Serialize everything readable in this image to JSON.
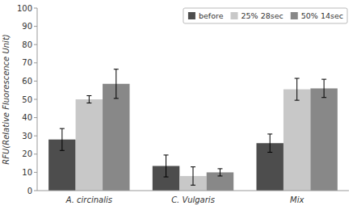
{
  "chart_data": {
    "type": "bar",
    "categories": [
      "A. circinalis",
      "C. Vulgaris",
      "Mix"
    ],
    "series": [
      {
        "name": "before",
        "color": "#4d4d4d",
        "values": [
          28,
          13.5,
          26
        ],
        "errors": [
          6,
          6,
          5
        ]
      },
      {
        "name": "25% 28sec",
        "color": "#c8c8c8",
        "values": [
          50,
          8,
          55.5
        ],
        "errors": [
          2,
          5,
          6
        ]
      },
      {
        "name": "50% 14sec",
        "color": "#888888",
        "values": [
          58.5,
          10,
          56
        ],
        "errors": [
          8,
          2,
          5
        ]
      }
    ],
    "ylabel": "RFU(Relative Fluorescence Unit)",
    "ylim": [
      0,
      100
    ],
    "yticks": [
      0,
      10,
      20,
      30,
      40,
      50,
      60,
      70,
      80,
      90,
      100
    ],
    "legend": "upper right",
    "grid": false
  }
}
